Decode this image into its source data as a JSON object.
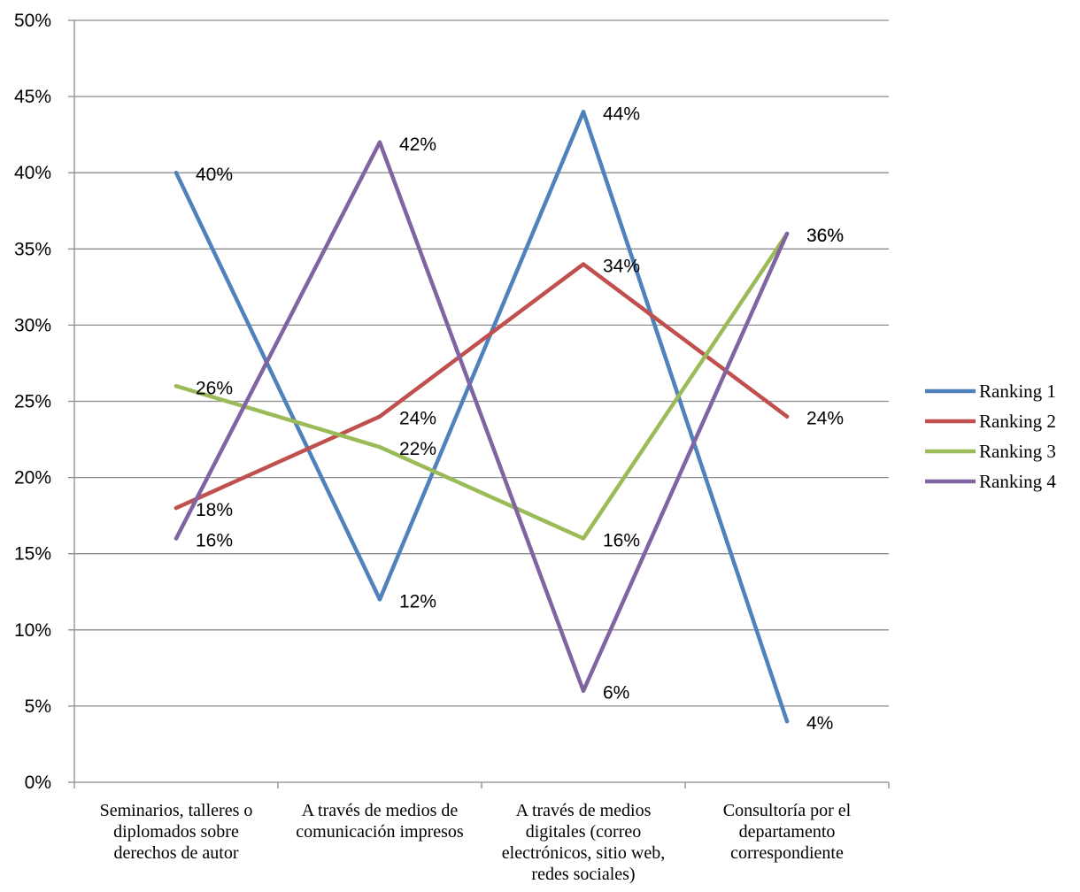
{
  "chart_data": {
    "type": "line",
    "categories": [
      [
        "Seminarios, talleres o",
        "diplomados sobre",
        "derechos de autor"
      ],
      [
        "A través de medios de",
        "comunicación impresos"
      ],
      [
        "A través de medios",
        "digitales (correo",
        "electrónicos, sitio web,",
        "redes sociales)"
      ],
      [
        "Consultoría por el",
        "departamento",
        "correspondiente"
      ]
    ],
    "ylim": [
      0,
      50
    ],
    "yticks": [
      "0%",
      "5%",
      "10%",
      "15%",
      "20%",
      "25%",
      "30%",
      "35%",
      "40%",
      "45%",
      "50%"
    ],
    "grid": true,
    "legend_position": "right",
    "series": [
      {
        "name": "Ranking 1",
        "color": "#4F81BD",
        "values": [
          40,
          12,
          44,
          4
        ],
        "labels": [
          "40%",
          "12%",
          "44%",
          "4%"
        ]
      },
      {
        "name": "Ranking 2",
        "color": "#C0504D",
        "values": [
          18,
          24,
          34,
          24
        ],
        "labels": [
          "18%",
          "24%",
          "34%",
          "24%"
        ]
      },
      {
        "name": "Ranking 3",
        "color": "#9BBB59",
        "values": [
          26,
          22,
          16,
          36
        ],
        "labels": [
          "26%",
          "22%",
          "16%",
          "36%"
        ]
      },
      {
        "name": "Ranking 4",
        "color": "#8064A2",
        "values": [
          16,
          42,
          6,
          36
        ],
        "labels": [
          "16%",
          "42%",
          "6%",
          "36%"
        ]
      }
    ]
  }
}
